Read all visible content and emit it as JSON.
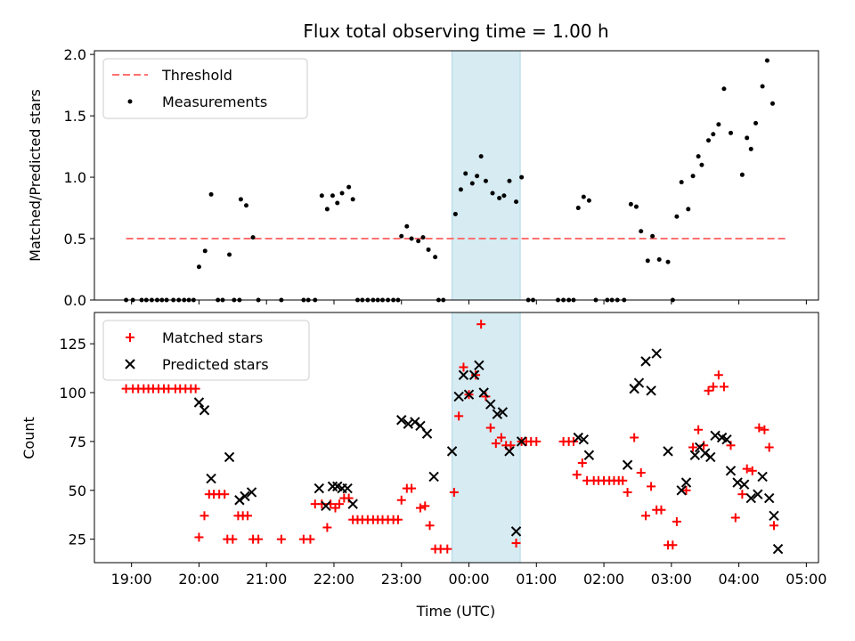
{
  "chart_data": {
    "type": "scatter",
    "title": "Flux total observing time = 1.00 h",
    "xlabel": "Time (UTC)",
    "x_tick_labels": [
      "19:00",
      "20:00",
      "21:00",
      "22:00",
      "23:00",
      "00:00",
      "01:00",
      "02:00",
      "03:00",
      "04:00",
      "05:00"
    ],
    "x_tick_hours": [
      0,
      1,
      2,
      3,
      4,
      5,
      6,
      7,
      8,
      9,
      10
    ],
    "xlim_hours": [
      -0.55,
      10.18
    ],
    "highlight_span_hours": [
      4.75,
      5.76
    ],
    "highlight_color": "#add8e6",
    "top": {
      "ylabel": "Matched/Predicted stars",
      "ylim": [
        0,
        2.03
      ],
      "y_ticks": [
        0.0,
        0.5,
        1.0,
        1.5,
        2.0
      ],
      "y_tick_labels": [
        "0.0",
        "0.5",
        "1.0",
        "1.5",
        "2.0"
      ],
      "legend": [
        "Threshold",
        "Measurements"
      ],
      "threshold": {
        "name": "Threshold",
        "value": 0.5,
        "x_range_hours": [
          -0.08,
          9.7
        ],
        "color": "#ff7070"
      },
      "measurements": {
        "name": "Measurements",
        "color": "#000000",
        "points": [
          [
            -0.08,
            0
          ],
          [
            0.02,
            0
          ],
          [
            0.15,
            0
          ],
          [
            0.22,
            0
          ],
          [
            0.3,
            0
          ],
          [
            0.38,
            0
          ],
          [
            0.45,
            0
          ],
          [
            0.52,
            0
          ],
          [
            0.62,
            0
          ],
          [
            0.7,
            0
          ],
          [
            0.78,
            0
          ],
          [
            0.85,
            0
          ],
          [
            0.92,
            0
          ],
          [
            1.0,
            0.27
          ],
          [
            1.09,
            0.4
          ],
          [
            1.18,
            0.86
          ],
          [
            1.28,
            0
          ],
          [
            1.35,
            0
          ],
          [
            1.45,
            0.37
          ],
          [
            1.52,
            0
          ],
          [
            1.6,
            0
          ],
          [
            1.62,
            0.82
          ],
          [
            1.7,
            0.77
          ],
          [
            1.8,
            0.51
          ],
          [
            1.88,
            0
          ],
          [
            2.22,
            0
          ],
          [
            2.55,
            0
          ],
          [
            2.62,
            0
          ],
          [
            2.72,
            0
          ],
          [
            2.82,
            0.85
          ],
          [
            2.9,
            0.74
          ],
          [
            2.98,
            0.85
          ],
          [
            3.05,
            0.79
          ],
          [
            3.12,
            0.87
          ],
          [
            3.22,
            0.92
          ],
          [
            3.28,
            0.82
          ],
          [
            3.35,
            0
          ],
          [
            3.42,
            0
          ],
          [
            3.5,
            0
          ],
          [
            3.58,
            0
          ],
          [
            3.65,
            0
          ],
          [
            3.72,
            0
          ],
          [
            3.8,
            0
          ],
          [
            3.88,
            0
          ],
          [
            3.95,
            0
          ],
          [
            4.0,
            0.52
          ],
          [
            4.08,
            0.6
          ],
          [
            4.15,
            0.5
          ],
          [
            4.25,
            0.48
          ],
          [
            4.32,
            0.51
          ],
          [
            4.4,
            0.41
          ],
          [
            4.5,
            0.35
          ],
          [
            4.55,
            0
          ],
          [
            4.62,
            0
          ],
          [
            4.8,
            0.7
          ],
          [
            4.88,
            0.9
          ],
          [
            4.95,
            1.03
          ],
          [
            5.05,
            0.95
          ],
          [
            5.12,
            1.01
          ],
          [
            5.18,
            1.17
          ],
          [
            5.25,
            0.97
          ],
          [
            5.35,
            0.87
          ],
          [
            5.45,
            0.83
          ],
          [
            5.52,
            0.85
          ],
          [
            5.6,
            0.97
          ],
          [
            5.7,
            0.8
          ],
          [
            5.78,
            1.0
          ],
          [
            5.88,
            0
          ],
          [
            5.95,
            0
          ],
          [
            6.32,
            0
          ],
          [
            6.4,
            0
          ],
          [
            6.48,
            0
          ],
          [
            6.55,
            0
          ],
          [
            6.62,
            0.75
          ],
          [
            6.7,
            0.84
          ],
          [
            6.78,
            0.81
          ],
          [
            6.88,
            0
          ],
          [
            7.05,
            0
          ],
          [
            7.12,
            0
          ],
          [
            7.2,
            0
          ],
          [
            7.3,
            0
          ],
          [
            7.4,
            0.78
          ],
          [
            7.48,
            0.76
          ],
          [
            7.55,
            0.56
          ],
          [
            7.65,
            0.32
          ],
          [
            7.72,
            0.52
          ],
          [
            7.82,
            0.33
          ],
          [
            7.95,
            0.31
          ],
          [
            8.02,
            0
          ],
          [
            8.08,
            0.68
          ],
          [
            8.15,
            0.96
          ],
          [
            8.25,
            0.74
          ],
          [
            8.32,
            1.01
          ],
          [
            8.4,
            1.17
          ],
          [
            8.45,
            1.1
          ],
          [
            8.55,
            1.3
          ],
          [
            8.62,
            1.35
          ],
          [
            8.7,
            1.43
          ],
          [
            8.78,
            1.72
          ],
          [
            8.88,
            1.36
          ],
          [
            9.05,
            1.02
          ],
          [
            9.12,
            1.32
          ],
          [
            9.18,
            1.23
          ],
          [
            9.25,
            1.44
          ],
          [
            9.35,
            1.74
          ],
          [
            9.42,
            1.95
          ],
          [
            9.5,
            1.6
          ]
        ]
      }
    },
    "bottom": {
      "ylabel": "Count",
      "ylim": [
        13,
        141
      ],
      "y_ticks": [
        25,
        50,
        75,
        100,
        125
      ],
      "y_tick_labels": [
        "25",
        "50",
        "75",
        "100",
        "125"
      ],
      "legend": [
        "Matched stars",
        "Predicted stars"
      ],
      "matched": {
        "name": "Matched stars",
        "color": "#ff0000",
        "points": [
          [
            -0.08,
            102
          ],
          [
            0.02,
            102
          ],
          [
            0.1,
            102
          ],
          [
            0.18,
            102
          ],
          [
            0.25,
            102
          ],
          [
            0.32,
            102
          ],
          [
            0.4,
            102
          ],
          [
            0.48,
            102
          ],
          [
            0.55,
            102
          ],
          [
            0.65,
            102
          ],
          [
            0.72,
            102
          ],
          [
            0.8,
            102
          ],
          [
            0.88,
            102
          ],
          [
            0.95,
            102
          ],
          [
            1.0,
            26
          ],
          [
            1.08,
            37
          ],
          [
            1.15,
            48
          ],
          [
            1.22,
            48
          ],
          [
            1.3,
            48
          ],
          [
            1.38,
            48
          ],
          [
            1.42,
            25
          ],
          [
            1.5,
            25
          ],
          [
            1.58,
            37
          ],
          [
            1.65,
            37
          ],
          [
            1.72,
            37
          ],
          [
            1.8,
            25
          ],
          [
            1.88,
            25
          ],
          [
            2.22,
            25
          ],
          [
            2.55,
            25
          ],
          [
            2.65,
            25
          ],
          [
            2.72,
            43
          ],
          [
            2.82,
            43
          ],
          [
            2.9,
            31
          ],
          [
            2.95,
            43
          ],
          [
            3.02,
            41
          ],
          [
            3.08,
            43
          ],
          [
            3.15,
            46
          ],
          [
            3.22,
            46
          ],
          [
            3.28,
            35
          ],
          [
            3.35,
            35
          ],
          [
            3.42,
            35
          ],
          [
            3.5,
            35
          ],
          [
            3.58,
            35
          ],
          [
            3.65,
            35
          ],
          [
            3.72,
            35
          ],
          [
            3.8,
            35
          ],
          [
            3.88,
            35
          ],
          [
            3.95,
            35
          ],
          [
            4.0,
            45
          ],
          [
            4.08,
            51
          ],
          [
            4.15,
            51
          ],
          [
            4.28,
            41
          ],
          [
            4.35,
            42
          ],
          [
            4.42,
            32
          ],
          [
            4.5,
            20
          ],
          [
            4.58,
            20
          ],
          [
            4.68,
            20
          ],
          [
            4.78,
            49
          ],
          [
            4.85,
            88
          ],
          [
            4.92,
            113
          ],
          [
            5.0,
            99
          ],
          [
            5.1,
            109
          ],
          [
            5.18,
            135
          ],
          [
            5.25,
            98
          ],
          [
            5.32,
            82
          ],
          [
            5.4,
            74
          ],
          [
            5.48,
            77
          ],
          [
            5.55,
            73
          ],
          [
            5.62,
            73
          ],
          [
            5.7,
            23
          ],
          [
            5.78,
            75
          ],
          [
            5.85,
            75
          ],
          [
            5.92,
            75
          ],
          [
            6.0,
            75
          ],
          [
            6.4,
            75
          ],
          [
            6.48,
            75
          ],
          [
            6.55,
            75
          ],
          [
            6.6,
            58
          ],
          [
            6.68,
            64
          ],
          [
            6.75,
            55
          ],
          [
            6.85,
            55
          ],
          [
            6.92,
            55
          ],
          [
            7.0,
            55
          ],
          [
            7.08,
            55
          ],
          [
            7.15,
            55
          ],
          [
            7.22,
            55
          ],
          [
            7.28,
            55
          ],
          [
            7.35,
            49
          ],
          [
            7.45,
            77
          ],
          [
            7.55,
            59
          ],
          [
            7.62,
            37
          ],
          [
            7.7,
            52
          ],
          [
            7.78,
            40
          ],
          [
            7.85,
            40
          ],
          [
            7.95,
            22
          ],
          [
            8.02,
            22
          ],
          [
            8.08,
            34
          ],
          [
            8.22,
            50
          ],
          [
            8.32,
            72
          ],
          [
            8.4,
            81
          ],
          [
            8.48,
            73
          ],
          [
            8.55,
            101
          ],
          [
            8.62,
            103
          ],
          [
            8.7,
            109
          ],
          [
            8.78,
            103
          ],
          [
            8.88,
            73
          ],
          [
            8.95,
            36
          ],
          [
            9.05,
            48
          ],
          [
            9.12,
            61
          ],
          [
            9.2,
            60
          ],
          [
            9.3,
            82
          ],
          [
            9.38,
            81
          ],
          [
            9.45,
            72
          ],
          [
            9.52,
            32
          ]
        ]
      },
      "predicted": {
        "name": "Predicted stars",
        "color": "#000000",
        "points": [
          [
            1.0,
            95
          ],
          [
            1.08,
            91
          ],
          [
            1.18,
            56
          ],
          [
            1.45,
            67
          ],
          [
            1.6,
            45
          ],
          [
            1.68,
            47
          ],
          [
            1.78,
            49
          ],
          [
            2.78,
            51
          ],
          [
            2.88,
            42
          ],
          [
            2.98,
            52
          ],
          [
            3.05,
            52
          ],
          [
            3.12,
            51
          ],
          [
            3.2,
            51
          ],
          [
            3.28,
            43
          ],
          [
            4.0,
            86
          ],
          [
            4.1,
            84
          ],
          [
            4.2,
            85
          ],
          [
            4.28,
            83
          ],
          [
            4.38,
            79
          ],
          [
            4.48,
            57
          ],
          [
            4.75,
            70
          ],
          [
            4.85,
            98
          ],
          [
            4.92,
            109
          ],
          [
            5.0,
            99
          ],
          [
            5.08,
            109
          ],
          [
            5.15,
            114
          ],
          [
            5.22,
            100
          ],
          [
            5.32,
            94
          ],
          [
            5.42,
            89
          ],
          [
            5.5,
            90
          ],
          [
            5.6,
            70
          ],
          [
            5.7,
            29
          ],
          [
            5.78,
            75
          ],
          [
            6.62,
            77
          ],
          [
            6.7,
            76
          ],
          [
            6.78,
            68
          ],
          [
            7.35,
            63
          ],
          [
            7.45,
            102
          ],
          [
            7.52,
            105
          ],
          [
            7.62,
            116
          ],
          [
            7.7,
            101
          ],
          [
            7.78,
            120
          ],
          [
            7.95,
            70
          ],
          [
            8.15,
            50
          ],
          [
            8.22,
            54
          ],
          [
            8.35,
            68
          ],
          [
            8.42,
            72
          ],
          [
            8.5,
            69
          ],
          [
            8.58,
            67
          ],
          [
            8.65,
            78
          ],
          [
            8.75,
            77
          ],
          [
            8.82,
            76
          ],
          [
            8.88,
            60
          ],
          [
            8.98,
            54
          ],
          [
            9.08,
            53
          ],
          [
            9.18,
            46
          ],
          [
            9.28,
            48
          ],
          [
            9.35,
            57
          ],
          [
            9.45,
            46
          ],
          [
            9.52,
            37
          ],
          [
            9.58,
            20
          ]
        ]
      }
    }
  }
}
